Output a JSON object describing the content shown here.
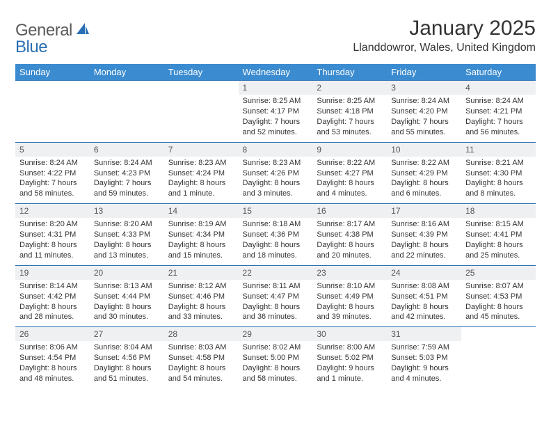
{
  "logo": {
    "text1": "General",
    "text2": "Blue"
  },
  "title": "January 2025",
  "location": "Llanddowror, Wales, United Kingdom",
  "colors": {
    "header_bg": "#3b8bd0",
    "header_text": "#ffffff",
    "daynum_bg": "#eef0f2",
    "rule": "#2a6fb5",
    "logo_gray": "#5a5a5a",
    "logo_blue": "#2a6fb5",
    "body_text": "#333333"
  },
  "day_headers": [
    "Sunday",
    "Monday",
    "Tuesday",
    "Wednesday",
    "Thursday",
    "Friday",
    "Saturday"
  ],
  "weeks": [
    [
      null,
      null,
      null,
      {
        "n": "1",
        "sr": "Sunrise: 8:25 AM",
        "ss": "Sunset: 4:17 PM",
        "dl": "Daylight: 7 hours and 52 minutes."
      },
      {
        "n": "2",
        "sr": "Sunrise: 8:25 AM",
        "ss": "Sunset: 4:18 PM",
        "dl": "Daylight: 7 hours and 53 minutes."
      },
      {
        "n": "3",
        "sr": "Sunrise: 8:24 AM",
        "ss": "Sunset: 4:20 PM",
        "dl": "Daylight: 7 hours and 55 minutes."
      },
      {
        "n": "4",
        "sr": "Sunrise: 8:24 AM",
        "ss": "Sunset: 4:21 PM",
        "dl": "Daylight: 7 hours and 56 minutes."
      }
    ],
    [
      {
        "n": "5",
        "sr": "Sunrise: 8:24 AM",
        "ss": "Sunset: 4:22 PM",
        "dl": "Daylight: 7 hours and 58 minutes."
      },
      {
        "n": "6",
        "sr": "Sunrise: 8:24 AM",
        "ss": "Sunset: 4:23 PM",
        "dl": "Daylight: 7 hours and 59 minutes."
      },
      {
        "n": "7",
        "sr": "Sunrise: 8:23 AM",
        "ss": "Sunset: 4:24 PM",
        "dl": "Daylight: 8 hours and 1 minute."
      },
      {
        "n": "8",
        "sr": "Sunrise: 8:23 AM",
        "ss": "Sunset: 4:26 PM",
        "dl": "Daylight: 8 hours and 3 minutes."
      },
      {
        "n": "9",
        "sr": "Sunrise: 8:22 AM",
        "ss": "Sunset: 4:27 PM",
        "dl": "Daylight: 8 hours and 4 minutes."
      },
      {
        "n": "10",
        "sr": "Sunrise: 8:22 AM",
        "ss": "Sunset: 4:29 PM",
        "dl": "Daylight: 8 hours and 6 minutes."
      },
      {
        "n": "11",
        "sr": "Sunrise: 8:21 AM",
        "ss": "Sunset: 4:30 PM",
        "dl": "Daylight: 8 hours and 8 minutes."
      }
    ],
    [
      {
        "n": "12",
        "sr": "Sunrise: 8:20 AM",
        "ss": "Sunset: 4:31 PM",
        "dl": "Daylight: 8 hours and 11 minutes."
      },
      {
        "n": "13",
        "sr": "Sunrise: 8:20 AM",
        "ss": "Sunset: 4:33 PM",
        "dl": "Daylight: 8 hours and 13 minutes."
      },
      {
        "n": "14",
        "sr": "Sunrise: 8:19 AM",
        "ss": "Sunset: 4:34 PM",
        "dl": "Daylight: 8 hours and 15 minutes."
      },
      {
        "n": "15",
        "sr": "Sunrise: 8:18 AM",
        "ss": "Sunset: 4:36 PM",
        "dl": "Daylight: 8 hours and 18 minutes."
      },
      {
        "n": "16",
        "sr": "Sunrise: 8:17 AM",
        "ss": "Sunset: 4:38 PM",
        "dl": "Daylight: 8 hours and 20 minutes."
      },
      {
        "n": "17",
        "sr": "Sunrise: 8:16 AM",
        "ss": "Sunset: 4:39 PM",
        "dl": "Daylight: 8 hours and 22 minutes."
      },
      {
        "n": "18",
        "sr": "Sunrise: 8:15 AM",
        "ss": "Sunset: 4:41 PM",
        "dl": "Daylight: 8 hours and 25 minutes."
      }
    ],
    [
      {
        "n": "19",
        "sr": "Sunrise: 8:14 AM",
        "ss": "Sunset: 4:42 PM",
        "dl": "Daylight: 8 hours and 28 minutes."
      },
      {
        "n": "20",
        "sr": "Sunrise: 8:13 AM",
        "ss": "Sunset: 4:44 PM",
        "dl": "Daylight: 8 hours and 30 minutes."
      },
      {
        "n": "21",
        "sr": "Sunrise: 8:12 AM",
        "ss": "Sunset: 4:46 PM",
        "dl": "Daylight: 8 hours and 33 minutes."
      },
      {
        "n": "22",
        "sr": "Sunrise: 8:11 AM",
        "ss": "Sunset: 4:47 PM",
        "dl": "Daylight: 8 hours and 36 minutes."
      },
      {
        "n": "23",
        "sr": "Sunrise: 8:10 AM",
        "ss": "Sunset: 4:49 PM",
        "dl": "Daylight: 8 hours and 39 minutes."
      },
      {
        "n": "24",
        "sr": "Sunrise: 8:08 AM",
        "ss": "Sunset: 4:51 PM",
        "dl": "Daylight: 8 hours and 42 minutes."
      },
      {
        "n": "25",
        "sr": "Sunrise: 8:07 AM",
        "ss": "Sunset: 4:53 PM",
        "dl": "Daylight: 8 hours and 45 minutes."
      }
    ],
    [
      {
        "n": "26",
        "sr": "Sunrise: 8:06 AM",
        "ss": "Sunset: 4:54 PM",
        "dl": "Daylight: 8 hours and 48 minutes."
      },
      {
        "n": "27",
        "sr": "Sunrise: 8:04 AM",
        "ss": "Sunset: 4:56 PM",
        "dl": "Daylight: 8 hours and 51 minutes."
      },
      {
        "n": "28",
        "sr": "Sunrise: 8:03 AM",
        "ss": "Sunset: 4:58 PM",
        "dl": "Daylight: 8 hours and 54 minutes."
      },
      {
        "n": "29",
        "sr": "Sunrise: 8:02 AM",
        "ss": "Sunset: 5:00 PM",
        "dl": "Daylight: 8 hours and 58 minutes."
      },
      {
        "n": "30",
        "sr": "Sunrise: 8:00 AM",
        "ss": "Sunset: 5:02 PM",
        "dl": "Daylight: 9 hours and 1 minute."
      },
      {
        "n": "31",
        "sr": "Sunrise: 7:59 AM",
        "ss": "Sunset: 5:03 PM",
        "dl": "Daylight: 9 hours and 4 minutes."
      },
      null
    ]
  ]
}
